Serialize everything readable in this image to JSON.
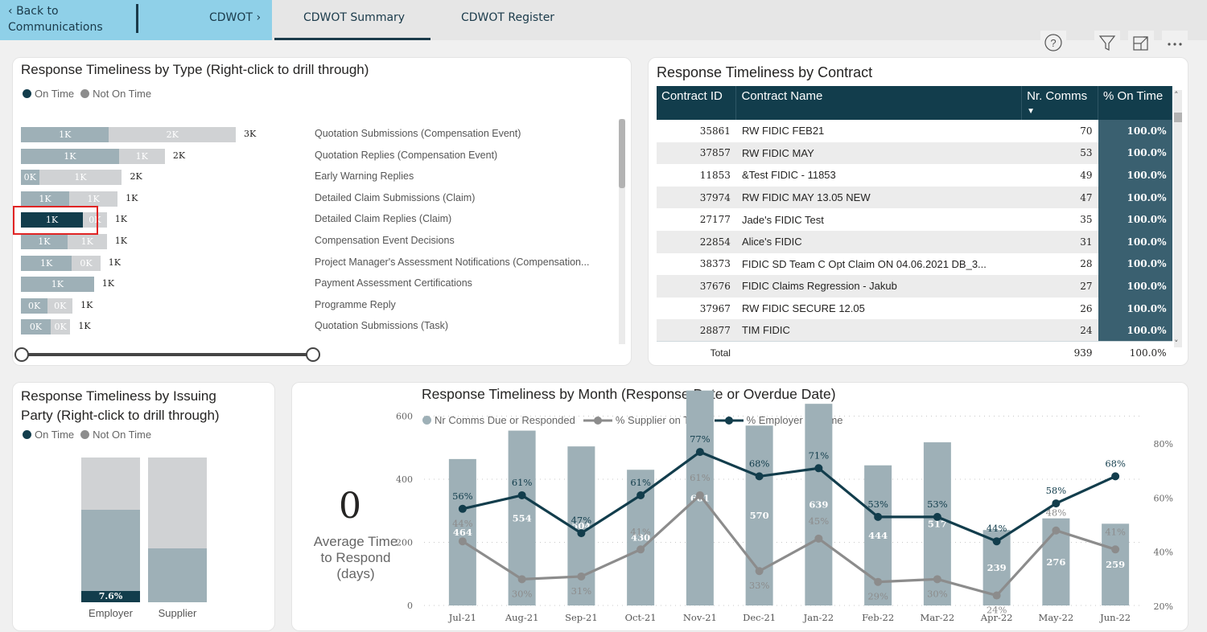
{
  "nav": {
    "back_label_line1": "Back to",
    "back_label_line2": "Communications",
    "cdwot_label": "CDWOT",
    "tabs": [
      {
        "label": "CDWOT Summary",
        "active": true
      },
      {
        "label": "CDWOT Register",
        "active": false
      }
    ]
  },
  "toolbar": {
    "icons": [
      "help-icon",
      "filter-icon",
      "focus-mode-icon",
      "more-options-icon"
    ]
  },
  "colors": {
    "on_time": "#123d4c",
    "on_time_bar": "#9eb0b7",
    "not_on_time": "#d0d2d4",
    "legend_not_on_time": "#8c8c8c",
    "supplier_line": "#8c8c8c",
    "employer_line": "#123d4c",
    "accent_nav": "#8fd0e8",
    "highlight_box": "#e02424"
  },
  "type_chart": {
    "title": "Response Timeliness by Type (Right-click to drill through)",
    "legend": [
      {
        "label": "On Time"
      },
      {
        "label": "Not On Time"
      }
    ],
    "rows": [
      {
        "category": "Quotation Submissions (Compensation Event)",
        "on_time_label": "1K",
        "not_on_time_label": "2K",
        "total_label": "3K",
        "on_time_share": 0.41,
        "total_share": 1.0
      },
      {
        "category": "Quotation Replies (Compensation Event)",
        "on_time_label": "1K",
        "not_on_time_label": "1K",
        "total_label": "2K",
        "on_time_share": 0.68,
        "total_share": 0.67
      },
      {
        "category": "Early Warning Replies",
        "on_time_label": "0K",
        "not_on_time_label": "1K",
        "total_label": "2K",
        "on_time_share": 0.18,
        "total_share": 0.47
      },
      {
        "category": "Detailed Claim Submissions (Claim)",
        "on_time_label": "1K",
        "not_on_time_label": "1K",
        "total_label": "1K",
        "on_time_share": 0.5,
        "total_share": 0.45
      },
      {
        "category": "Detailed Claim Replies (Claim)",
        "on_time_label": "1K",
        "not_on_time_label": "0K",
        "total_label": "1K",
        "on_time_share": 0.72,
        "total_share": 0.4,
        "selected": true
      },
      {
        "category": "Compensation Event Decisions",
        "on_time_label": "1K",
        "not_on_time_label": "1K",
        "total_label": "1K",
        "on_time_share": 0.54,
        "total_share": 0.4
      },
      {
        "category": "Project Manager's Assessment Notifications (Compensation...",
        "on_time_label": "1K",
        "not_on_time_label": "0K",
        "total_label": "1K",
        "on_time_share": 0.64,
        "total_share": 0.37
      },
      {
        "category": "Payment Assessment Certifications",
        "on_time_label": "1K",
        "not_on_time_label": "",
        "total_label": "1K",
        "on_time_share": 1.0,
        "total_share": 0.34
      },
      {
        "category": "Programme Reply",
        "on_time_label": "0K",
        "not_on_time_label": "0K",
        "total_label": "1K",
        "on_time_share": 0.52,
        "total_share": 0.24
      },
      {
        "category": "Quotation Submissions (Task)",
        "on_time_label": "0K",
        "not_on_time_label": "0K",
        "total_label": "1K",
        "on_time_share": 0.6,
        "total_share": 0.23
      }
    ],
    "range_slider": {
      "start": 0,
      "end": 1
    }
  },
  "contract_table": {
    "title": "Response Timeliness by Contract",
    "columns": [
      "Contract ID",
      "Contract Name",
      "Nr. Comms",
      "% On Time"
    ],
    "sorted_column": "Nr. Comms",
    "rows": [
      {
        "id": "35861",
        "name": "RW FIDIC FEB21",
        "comms": "70",
        "pct": "100.0%"
      },
      {
        "id": "37857",
        "name": "RW FIDIC MAY",
        "comms": "53",
        "pct": "100.0%"
      },
      {
        "id": "11853",
        "name": "&Test FIDIC - 11853",
        "comms": "49",
        "pct": "100.0%"
      },
      {
        "id": "37974",
        "name": "RW FIDIC MAY 13.05 NEW",
        "comms": "47",
        "pct": "100.0%"
      },
      {
        "id": "27177",
        "name": "Jade's FIDIC Test",
        "comms": "35",
        "pct": "100.0%"
      },
      {
        "id": "22854",
        "name": "Alice's FIDIC",
        "comms": "31",
        "pct": "100.0%"
      },
      {
        "id": "38373",
        "name": "FIDIC SD Team C Opt Claim ON 04.06.2021 DB_3...",
        "comms": "28",
        "pct": "100.0%"
      },
      {
        "id": "37676",
        "name": "FIDIC Claims Regression - Jakub",
        "comms": "27",
        "pct": "100.0%"
      },
      {
        "id": "37967",
        "name": "RW FIDIC SECURE 12.05",
        "comms": "26",
        "pct": "100.0%"
      },
      {
        "id": "28877",
        "name": "TIM FIDIC",
        "comms": "24",
        "pct": "100.0%"
      }
    ],
    "total": {
      "label": "Total",
      "comms": "939",
      "pct": "100.0%"
    }
  },
  "party_chart": {
    "title_line1": "Response Timeliness by Issuing",
    "title_line2": "Party (Right-click to drill through)",
    "legend": [
      {
        "label": "On Time"
      },
      {
        "label": "Not On Time"
      }
    ],
    "bars": [
      {
        "party": "Employer",
        "on_time_pct": 7.6,
        "on_time_label": "7.6%",
        "mid_pct": 56.4,
        "not_on_time_pct": 36
      },
      {
        "party": "Supplier",
        "on_time_pct": 0,
        "on_time_label": "",
        "mid_pct": 37,
        "not_on_time_pct": 63
      }
    ]
  },
  "kpi": {
    "value": "0",
    "label_line1": "Average Time",
    "label_line2": "to Respond",
    "label_line3": "(days)"
  },
  "chart_data": {
    "type": "bar",
    "title": "Response Timeliness by Month (Response Date or Overdue Date)",
    "legend": [
      "Nr Comms Due or Responded",
      "% Supplier on Time",
      "% Employer on Time"
    ],
    "categories": [
      "Jul-21",
      "Aug-21",
      "Sep-21",
      "Oct-21",
      "Nov-21",
      "Dec-21",
      "Jan-22",
      "Feb-22",
      "Mar-22",
      "Apr-22",
      "May-22",
      "Jun-22"
    ],
    "series": [
      {
        "name": "Nr Comms Due or Responded",
        "type": "bar",
        "axis": "left",
        "values": [
          464,
          554,
          504,
          430,
          681,
          570,
          639,
          444,
          517,
          239,
          276,
          259
        ]
      },
      {
        "name": "% Supplier on Time",
        "type": "line",
        "axis": "right",
        "values": [
          44,
          30,
          31,
          41,
          61,
          33,
          45,
          29,
          30,
          24,
          48,
          41
        ]
      },
      {
        "name": "% Employer on Time",
        "type": "line",
        "axis": "right",
        "values": [
          56,
          61,
          47,
          61,
          77,
          68,
          71,
          53,
          53,
          44,
          58,
          68
        ]
      }
    ],
    "y_left": {
      "ticks": [
        0,
        200,
        400,
        600
      ],
      "range": [
        0,
        800
      ]
    },
    "y_right": {
      "ticks": [
        "20%",
        "40%",
        "60%",
        "80%"
      ],
      "range": [
        20,
        80
      ]
    },
    "grid": true,
    "legend_position": "top-left"
  }
}
